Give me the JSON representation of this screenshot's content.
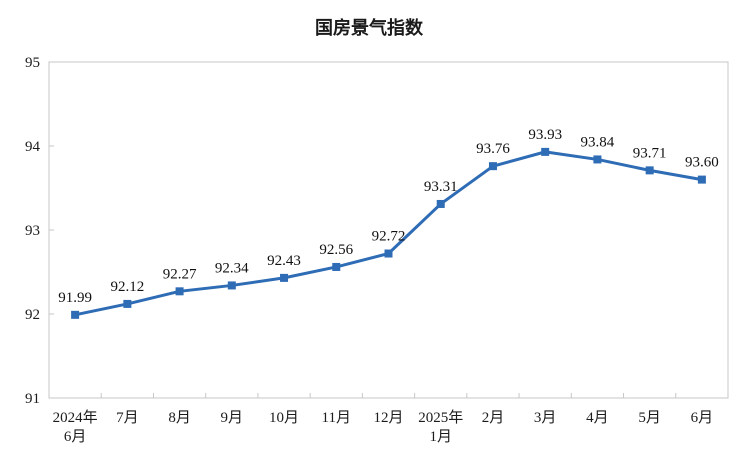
{
  "chart_data": {
    "type": "line",
    "title": "国房景气指数",
    "categories": [
      "2024年\n6月",
      "7月",
      "8月",
      "9月",
      "10月",
      "11月",
      "12月",
      "2025年\n1月",
      "2月",
      "3月",
      "4月",
      "5月",
      "6月"
    ],
    "values": [
      91.99,
      92.12,
      92.27,
      92.34,
      92.43,
      92.56,
      92.72,
      93.31,
      93.76,
      93.93,
      93.84,
      93.71,
      93.6
    ],
    "labels": [
      "91.99",
      "92.12",
      "92.27",
      "92.34",
      "92.43",
      "92.56",
      "92.72",
      "93.31",
      "93.76",
      "93.93",
      "93.84",
      "93.71",
      "93.60"
    ],
    "ylim": [
      91,
      95
    ],
    "yticks": [
      91,
      92,
      93,
      94,
      95
    ],
    "xlabel": "",
    "ylabel": "",
    "grid": false,
    "legend_position": "none",
    "marker": "square",
    "line_color": "#2E6CB5",
    "axis_color": "#C7C7C7",
    "text_color": "#1c1c1c"
  }
}
